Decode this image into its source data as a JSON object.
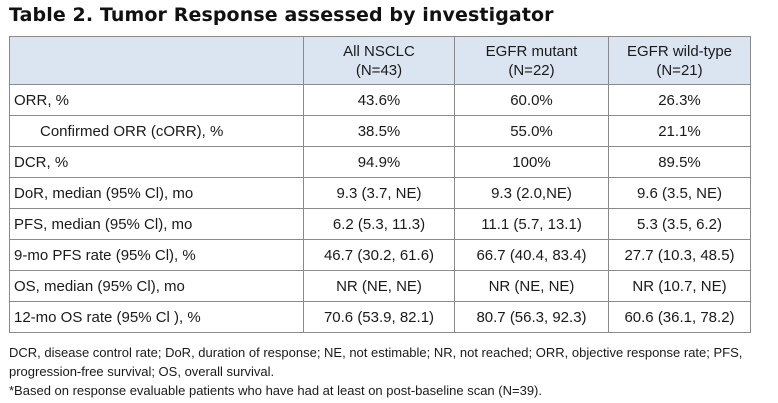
{
  "title": "Table 2. Tumor Response assessed by investigator",
  "table": {
    "columns": [
      {
        "line1": "All NSCLC",
        "line2": "(N=43)"
      },
      {
        "line1": "EGFR mutant",
        "line2": "(N=22)"
      },
      {
        "line1": "EGFR wild-type",
        "line2": "(N=21)"
      }
    ],
    "rows": [
      {
        "label": "ORR, %",
        "values": [
          "43.6%",
          "60.0%",
          "26.3%"
        ]
      },
      {
        "label": "Confirmed ORR (cORR), %",
        "values": [
          "38.5%",
          "55.0%",
          "21.1%"
        ]
      },
      {
        "label": "DCR, %",
        "values": [
          "94.9%",
          "100%",
          "89.5%"
        ]
      },
      {
        "label": "DoR, median (95% Cl), mo",
        "values": [
          "9.3 (3.7, NE)",
          "9.3 (2.0,NE)",
          "9.6 (3.5, NE)"
        ]
      },
      {
        "label": "PFS, median (95% Cl), mo",
        "values": [
          "6.2 (5.3, 11.3)",
          "11.1 (5.7, 13.1)",
          "5.3 (3.5, 6.2)"
        ]
      },
      {
        "label": "9-mo PFS rate (95% Cl), %",
        "values": [
          "46.7 (30.2, 61.6)",
          "66.7 (40.4, 83.4)",
          "27.7 (10.3, 48.5)"
        ]
      },
      {
        "label": "OS, median (95% Cl), mo",
        "values": [
          "NR (NE, NE)",
          "NR (NE, NE)",
          "NR (10.7, NE)"
        ]
      },
      {
        "label": "12-mo OS rate (95% Cl ), %",
        "values": [
          "70.6 (53.9, 82.1)",
          "80.7 (56.3, 92.3)",
          "60.6 (36.1, 78.2)"
        ]
      }
    ]
  },
  "footnotes": {
    "abbreviations": "DCR, disease control rate; DoR, duration of response; NE, not estimable; NR, not reached; ORR, objective response rate; PFS, progression-free survival; OS, overall survival.",
    "asterisk": "*Based on response evaluable patients who have had at least on post-baseline scan (N=39)."
  }
}
